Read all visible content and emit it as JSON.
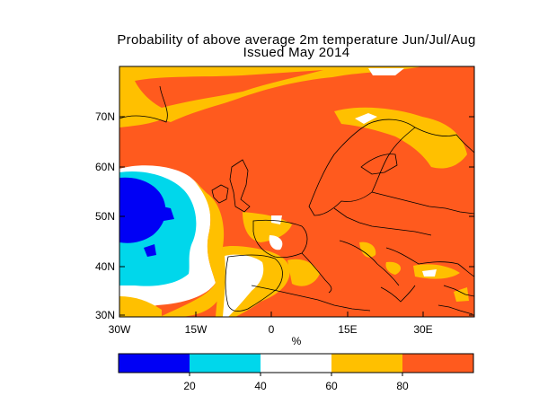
{
  "title": "Probability of above average 2m temperature Jun/Jul/Aug",
  "subtitle": "Issued May 2014",
  "map": {
    "lat_labels": [
      "30N",
      "40N",
      "50N",
      "60N",
      "70N"
    ],
    "lon_labels": [
      "30W",
      "15W",
      "0",
      "15E",
      "30E"
    ]
  },
  "colorbar": {
    "unit_label": "%",
    "colors": [
      "#0000f5",
      "#00d7eb",
      "#ffffff",
      "#ffc000",
      "#ff5a1e"
    ],
    "tick_labels": [
      "20",
      "40",
      "60",
      "80"
    ]
  }
}
